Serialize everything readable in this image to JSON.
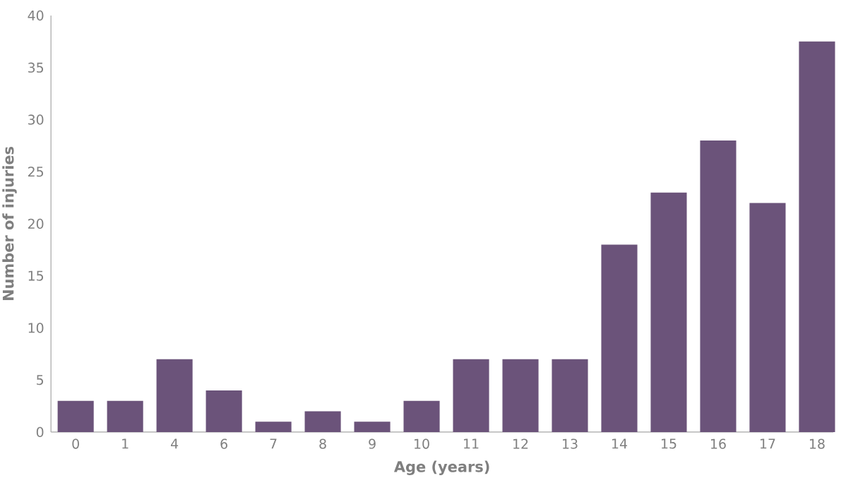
{
  "chart_data": {
    "type": "bar",
    "xlabel": "Age (years)",
    "ylabel": "Number of injuries",
    "categories": [
      "0",
      "1",
      "4",
      "6",
      "7",
      "8",
      "9",
      "10",
      "11",
      "12",
      "13",
      "14",
      "15",
      "16",
      "17",
      "18"
    ],
    "values": [
      3,
      3,
      7,
      4,
      1,
      2,
      1,
      3,
      7,
      7,
      7,
      18,
      23,
      28,
      22,
      37.5
    ],
    "color": "#6b537a",
    "ylim": [
      0,
      40
    ],
    "yticks": [
      0,
      5,
      10,
      15,
      20,
      25,
      30,
      35,
      40
    ]
  }
}
